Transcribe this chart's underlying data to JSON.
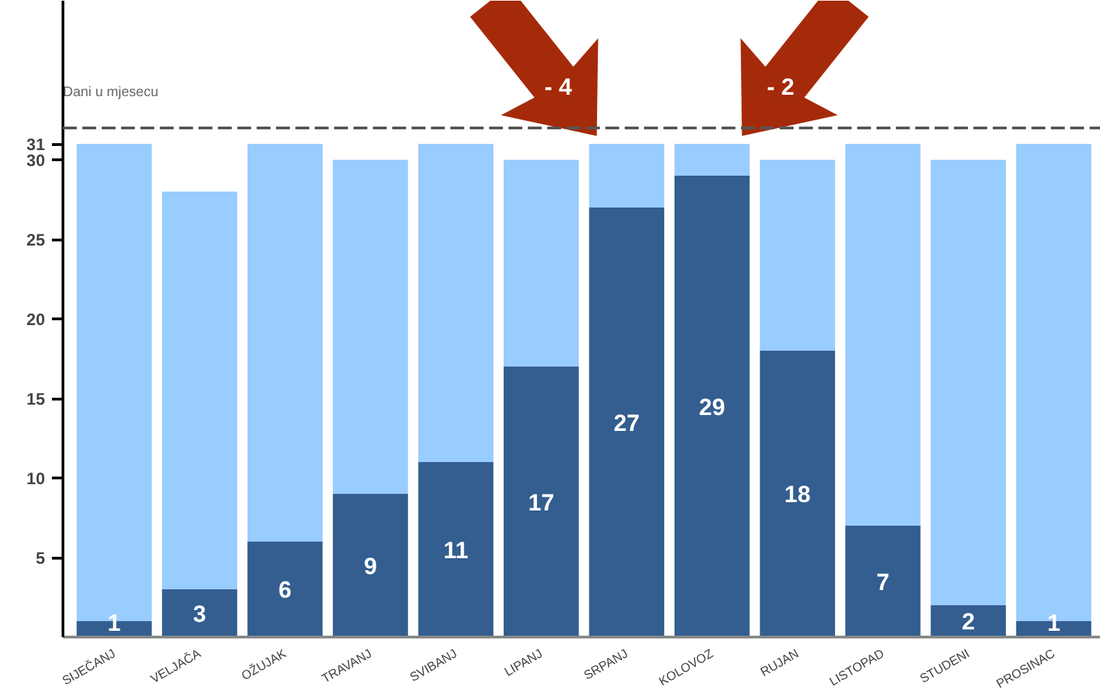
{
  "chart_data": {
    "type": "bar",
    "ylabel": "Dani u mjesecu",
    "categories": [
      "SIJEČANJ",
      "VELJAČA",
      "OŽUJAK",
      "TRAVANJ",
      "SVIBANJ",
      "LIPANJ",
      "SRPANJ",
      "KOLOVOZ",
      "RUJAN",
      "LISTOPAD",
      "STUDENI",
      "PROSINAC"
    ],
    "series": [
      {
        "color": "#335e8f",
        "values": [
          1,
          3,
          6,
          9,
          11,
          17,
          27,
          29,
          18,
          7,
          2,
          1
        ],
        "value_labels": [
          "1",
          "3",
          "6",
          "9",
          "11",
          "17",
          "27",
          "29",
          "18",
          "7",
          "2",
          "1"
        ]
      },
      {
        "color": "#99ccff",
        "values": [
          30,
          25,
          25,
          21,
          20,
          13,
          4,
          2,
          12,
          24,
          28,
          30
        ]
      }
    ],
    "stacked": true,
    "ylim": [
      0,
      40
    ],
    "yticks": [
      5,
      10,
      15,
      20,
      25,
      30,
      31
    ],
    "grid": false,
    "ref_lines": [
      {
        "axis": "y",
        "value": 32,
        "label": null,
        "color": "#555555",
        "line_style": "dashed"
      }
    ],
    "annotations": [
      {
        "text": "- 4",
        "x": "SRPANJ",
        "y": 31
      },
      {
        "text": "- 2",
        "x": "KOLOVOZ",
        "y": 31
      }
    ]
  }
}
